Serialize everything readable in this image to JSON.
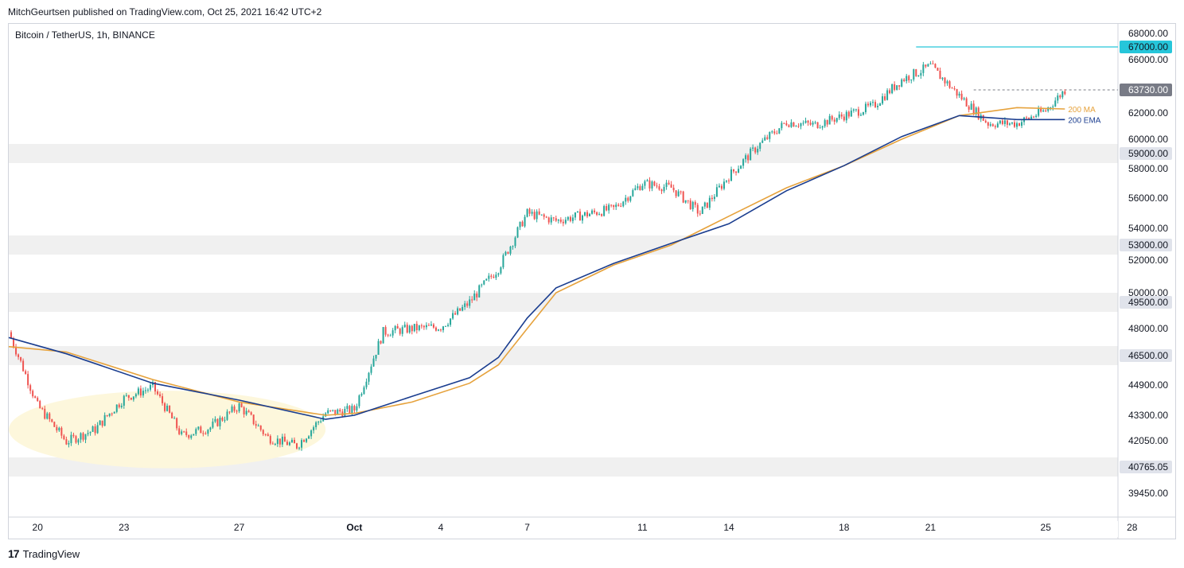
{
  "header": {
    "publisher_line": "MitchGeurtsen published on TradingView.com, Oct 25, 2021 16:42 UTC+2",
    "symbol_line": "Bitcoin / TetherUS, 1h, BINANCE"
  },
  "footer": {
    "brand": "TradingView",
    "logo_glyph": "17"
  },
  "chart_data": {
    "type": "candlestick",
    "title": "",
    "xlabel": "",
    "ylabel": "",
    "ylim": [
      39000,
      68500
    ],
    "x_ticks": [
      "20",
      "23",
      "27",
      "Oct",
      "4",
      "7",
      "11",
      "14",
      "18",
      "21",
      "25",
      "28"
    ],
    "y_ticks": [
      "68000.00",
      "66000.00",
      "62000.00",
      "60000.00",
      "58000.00",
      "56000.00",
      "54000.00",
      "52000.00",
      "50000.00",
      "48000.00",
      "44900.00",
      "43300.00",
      "42050.00",
      "39450.00"
    ],
    "labeled_levels": [
      {
        "label": "67000.00",
        "value": 67000,
        "color": "#26c6da",
        "style": "line"
      },
      {
        "label": "63730.00",
        "value": 63730,
        "color": "#787b86",
        "style": "dashed-current"
      },
      {
        "label": "59000.00",
        "value": 59000,
        "color": "#e8e8e8",
        "style": "zone"
      },
      {
        "label": "53000.00",
        "value": 53000,
        "color": "#e8e8e8",
        "style": "zone"
      },
      {
        "label": "49500.00",
        "value": 49500,
        "color": "#e8e8e8",
        "style": "zone"
      },
      {
        "label": "46500.00",
        "value": 46500,
        "color": "#e8e8e8",
        "style": "zone"
      },
      {
        "label": "40765.05",
        "value": 40765.05,
        "color": "#e8e8e8",
        "style": "zone"
      }
    ],
    "price_path": [
      [
        "2021-09-19",
        47800
      ],
      [
        "2021-09-20",
        43800
      ],
      [
        "2021-09-21",
        42000
      ],
      [
        "2021-09-22",
        42600
      ],
      [
        "2021-09-23",
        44200
      ],
      [
        "2021-09-24",
        44800
      ],
      [
        "2021-09-25",
        42300
      ],
      [
        "2021-09-26",
        42700
      ],
      [
        "2021-09-27",
        43800
      ],
      [
        "2021-09-28",
        42200
      ],
      [
        "2021-09-29",
        41800
      ],
      [
        "2021-09-30",
        43400
      ],
      [
        "2021-10-01",
        43600
      ],
      [
        "2021-10-02",
        47800
      ],
      [
        "2021-10-03",
        48000
      ],
      [
        "2021-10-04",
        48100
      ],
      [
        "2021-10-05",
        49500
      ],
      [
        "2021-10-06",
        51500
      ],
      [
        "2021-10-07",
        55000
      ],
      [
        "2021-10-08",
        54500
      ],
      [
        "2021-10-09",
        54900
      ],
      [
        "2021-10-10",
        55300
      ],
      [
        "2021-10-11",
        57000
      ],
      [
        "2021-10-12",
        56700
      ],
      [
        "2021-10-13",
        55000
      ],
      [
        "2021-10-14",
        57500
      ],
      [
        "2021-10-15",
        59500
      ],
      [
        "2021-10-16",
        61300
      ],
      [
        "2021-10-17",
        61100
      ],
      [
        "2021-10-18",
        61800
      ],
      [
        "2021-10-19",
        62500
      ],
      [
        "2021-10-20",
        64500
      ],
      [
        "2021-10-21",
        65500
      ],
      [
        "2021-10-22",
        63300
      ],
      [
        "2021-10-23",
        61200
      ],
      [
        "2021-10-24",
        61200
      ],
      [
        "2021-10-25",
        62200
      ],
      [
        "2021-10-25T16",
        63730
      ]
    ],
    "series": [
      {
        "name": "200 MA",
        "color": "#e6a23c",
        "values": [
          [
            "2021-09-19",
            47000
          ],
          [
            "2021-09-21",
            46700
          ],
          [
            "2021-09-24",
            45200
          ],
          [
            "2021-09-27",
            44000
          ],
          [
            "2021-09-30",
            43300
          ],
          [
            "2021-10-01",
            43400
          ],
          [
            "2021-10-03",
            44000
          ],
          [
            "2021-10-05",
            45000
          ],
          [
            "2021-10-06",
            46000
          ],
          [
            "2021-10-07",
            48000
          ],
          [
            "2021-10-08",
            50000
          ],
          [
            "2021-10-10",
            51700
          ],
          [
            "2021-10-12",
            53000
          ],
          [
            "2021-10-14",
            54800
          ],
          [
            "2021-10-16",
            56700
          ],
          [
            "2021-10-18",
            58200
          ],
          [
            "2021-10-20",
            60000
          ],
          [
            "2021-10-22",
            61800
          ],
          [
            "2021-10-24",
            62400
          ],
          [
            "2021-10-25T16",
            62300
          ]
        ]
      },
      {
        "name": "200 EMA",
        "color": "#1a3d8f",
        "values": [
          [
            "2021-09-19",
            47500
          ],
          [
            "2021-09-21",
            46600
          ],
          [
            "2021-09-24",
            45000
          ],
          [
            "2021-09-27",
            44100
          ],
          [
            "2021-09-30",
            43100
          ],
          [
            "2021-10-01",
            43300
          ],
          [
            "2021-10-03",
            44300
          ],
          [
            "2021-10-05",
            45300
          ],
          [
            "2021-10-06",
            46400
          ],
          [
            "2021-10-07",
            48600
          ],
          [
            "2021-10-08",
            50300
          ],
          [
            "2021-10-10",
            51800
          ],
          [
            "2021-10-12",
            53100
          ],
          [
            "2021-10-14",
            54300
          ],
          [
            "2021-10-16",
            56500
          ],
          [
            "2021-10-18",
            58200
          ],
          [
            "2021-10-20",
            60200
          ],
          [
            "2021-10-22",
            61800
          ],
          [
            "2021-10-24",
            61500
          ],
          [
            "2021-10-25T16",
            61500
          ]
        ]
      }
    ],
    "highlight_ellipse": {
      "from": "2021-09-19",
      "to": "2021-09-30",
      "low": 40700,
      "high": 44600,
      "color": "#fdf7dc"
    },
    "up_color": "#26a69a",
    "down_color": "#ef5350"
  }
}
